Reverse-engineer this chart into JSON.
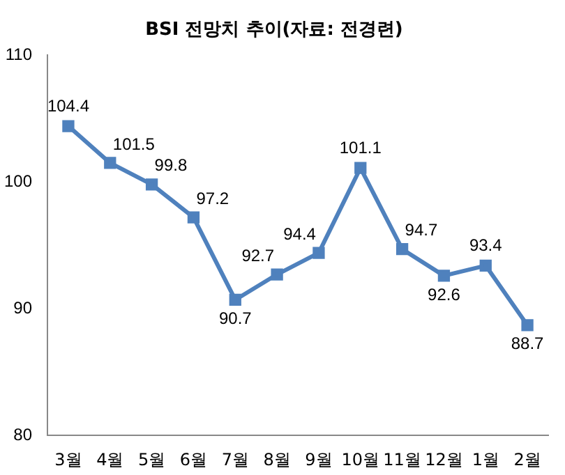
{
  "chart_data": {
    "type": "line",
    "title": "BSI 전망치 추이(자료: 전경련)",
    "categories": [
      "3월",
      "4월",
      "5월",
      "6월",
      "7월",
      "8월",
      "9월",
      "10월",
      "11월",
      "12월",
      "1월",
      "2월"
    ],
    "series": [
      {
        "color": "#4f81bd",
        "values": [
          104.4,
          101.5,
          99.8,
          97.2,
          90.7,
          92.7,
          94.4,
          101.1,
          94.7,
          92.6,
          93.4,
          88.7
        ]
      }
    ],
    "ylim": [
      80,
      110
    ],
    "yticks": [
      80,
      90,
      100,
      110
    ],
    "grid": false,
    "legend": false,
    "marker": "square",
    "line_style": "solid",
    "data_labels": true
  }
}
